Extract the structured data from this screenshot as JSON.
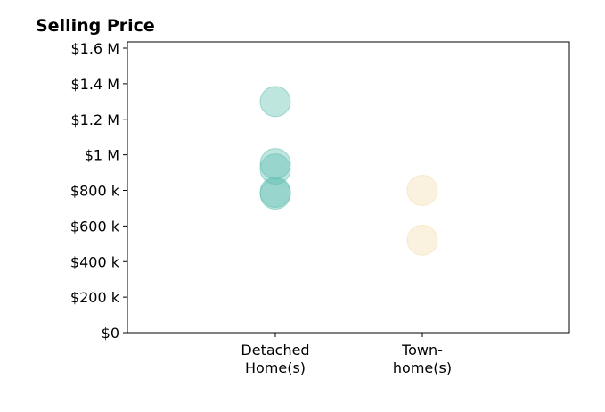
{
  "chart_data": {
    "type": "scatter",
    "title": "Selling Price",
    "xlabel": "",
    "ylabel": "",
    "categories": [
      [
        "Detached",
        "Home(s)"
      ],
      [
        "Town-",
        "home(s)"
      ]
    ],
    "ylim": [
      0,
      1600000
    ],
    "yticks": [
      {
        "value": 0,
        "label": "$0"
      },
      {
        "value": 200000,
        "label": "$200 k"
      },
      {
        "value": 400000,
        "label": "$400 k"
      },
      {
        "value": 600000,
        "label": "$600 k"
      },
      {
        "value": 800000,
        "label": "$800 k"
      },
      {
        "value": 1000000,
        "label": "$1 M"
      },
      {
        "value": 1200000,
        "label": "$1.2 M"
      },
      {
        "value": 1400000,
        "label": "$1.4 M"
      },
      {
        "value": 1600000,
        "label": "$1.6 M"
      }
    ],
    "grid": false,
    "series": [
      {
        "category": 0,
        "color": "#5fbfb0",
        "values": [
          1300000,
          950000,
          920000,
          790000,
          780000
        ]
      },
      {
        "category": 1,
        "color": "#f3dfad",
        "values": [
          800000,
          520000
        ]
      }
    ]
  }
}
